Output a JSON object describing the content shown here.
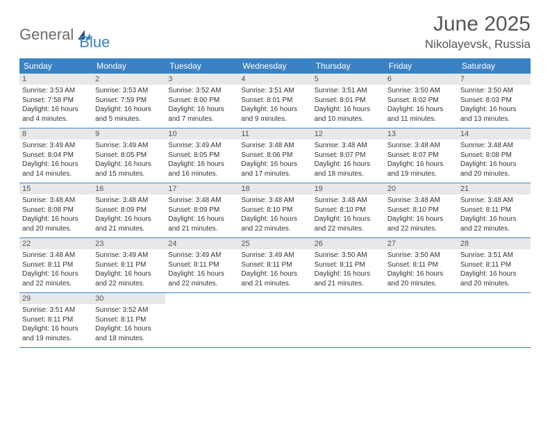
{
  "logo": {
    "part1": "General",
    "part2": "Blue"
  },
  "title": "June 2025",
  "subtitle": "Nikolayevsk, Russia",
  "colors": {
    "header_bg": "#3b82c4",
    "daynum_bg": "#e8e8e8",
    "text": "#333333",
    "title_text": "#555555",
    "border": "#3b82c4",
    "background": "#ffffff"
  },
  "typography": {
    "title_fontsize": 30,
    "subtitle_fontsize": 17,
    "header_fontsize": 12,
    "daynum_fontsize": 11,
    "body_fontsize": 10
  },
  "day_headers": [
    "Sunday",
    "Monday",
    "Tuesday",
    "Wednesday",
    "Thursday",
    "Friday",
    "Saturday"
  ],
  "weeks": [
    [
      {
        "n": "1",
        "sr": "3:53 AM",
        "ss": "7:58 PM",
        "dl": "16 hours and 4 minutes."
      },
      {
        "n": "2",
        "sr": "3:53 AM",
        "ss": "7:59 PM",
        "dl": "16 hours and 5 minutes."
      },
      {
        "n": "3",
        "sr": "3:52 AM",
        "ss": "8:00 PM",
        "dl": "16 hours and 7 minutes."
      },
      {
        "n": "4",
        "sr": "3:51 AM",
        "ss": "8:01 PM",
        "dl": "16 hours and 9 minutes."
      },
      {
        "n": "5",
        "sr": "3:51 AM",
        "ss": "8:01 PM",
        "dl": "16 hours and 10 minutes."
      },
      {
        "n": "6",
        "sr": "3:50 AM",
        "ss": "8:02 PM",
        "dl": "16 hours and 11 minutes."
      },
      {
        "n": "7",
        "sr": "3:50 AM",
        "ss": "8:03 PM",
        "dl": "16 hours and 13 minutes."
      }
    ],
    [
      {
        "n": "8",
        "sr": "3:49 AM",
        "ss": "8:04 PM",
        "dl": "16 hours and 14 minutes."
      },
      {
        "n": "9",
        "sr": "3:49 AM",
        "ss": "8:05 PM",
        "dl": "16 hours and 15 minutes."
      },
      {
        "n": "10",
        "sr": "3:49 AM",
        "ss": "8:05 PM",
        "dl": "16 hours and 16 minutes."
      },
      {
        "n": "11",
        "sr": "3:48 AM",
        "ss": "8:06 PM",
        "dl": "16 hours and 17 minutes."
      },
      {
        "n": "12",
        "sr": "3:48 AM",
        "ss": "8:07 PM",
        "dl": "16 hours and 18 minutes."
      },
      {
        "n": "13",
        "sr": "3:48 AM",
        "ss": "8:07 PM",
        "dl": "16 hours and 19 minutes."
      },
      {
        "n": "14",
        "sr": "3:48 AM",
        "ss": "8:08 PM",
        "dl": "16 hours and 20 minutes."
      }
    ],
    [
      {
        "n": "15",
        "sr": "3:48 AM",
        "ss": "8:08 PM",
        "dl": "16 hours and 20 minutes."
      },
      {
        "n": "16",
        "sr": "3:48 AM",
        "ss": "8:09 PM",
        "dl": "16 hours and 21 minutes."
      },
      {
        "n": "17",
        "sr": "3:48 AM",
        "ss": "8:09 PM",
        "dl": "16 hours and 21 minutes."
      },
      {
        "n": "18",
        "sr": "3:48 AM",
        "ss": "8:10 PM",
        "dl": "16 hours and 22 minutes."
      },
      {
        "n": "19",
        "sr": "3:48 AM",
        "ss": "8:10 PM",
        "dl": "16 hours and 22 minutes."
      },
      {
        "n": "20",
        "sr": "3:48 AM",
        "ss": "8:10 PM",
        "dl": "16 hours and 22 minutes."
      },
      {
        "n": "21",
        "sr": "3:48 AM",
        "ss": "8:11 PM",
        "dl": "16 hours and 22 minutes."
      }
    ],
    [
      {
        "n": "22",
        "sr": "3:48 AM",
        "ss": "8:11 PM",
        "dl": "16 hours and 22 minutes."
      },
      {
        "n": "23",
        "sr": "3:49 AM",
        "ss": "8:11 PM",
        "dl": "16 hours and 22 minutes."
      },
      {
        "n": "24",
        "sr": "3:49 AM",
        "ss": "8:11 PM",
        "dl": "16 hours and 22 minutes."
      },
      {
        "n": "25",
        "sr": "3:49 AM",
        "ss": "8:11 PM",
        "dl": "16 hours and 21 minutes."
      },
      {
        "n": "26",
        "sr": "3:50 AM",
        "ss": "8:11 PM",
        "dl": "16 hours and 21 minutes."
      },
      {
        "n": "27",
        "sr": "3:50 AM",
        "ss": "8:11 PM",
        "dl": "16 hours and 20 minutes."
      },
      {
        "n": "28",
        "sr": "3:51 AM",
        "ss": "8:11 PM",
        "dl": "16 hours and 20 minutes."
      }
    ],
    [
      {
        "n": "29",
        "sr": "3:51 AM",
        "ss": "8:11 PM",
        "dl": "16 hours and 19 minutes."
      },
      {
        "n": "30",
        "sr": "3:52 AM",
        "ss": "8:11 PM",
        "dl": "16 hours and 18 minutes."
      },
      {
        "empty": true
      },
      {
        "empty": true
      },
      {
        "empty": true
      },
      {
        "empty": true
      },
      {
        "empty": true
      }
    ]
  ],
  "labels": {
    "sunrise": "Sunrise:",
    "sunset": "Sunset:",
    "daylight": "Daylight:"
  }
}
